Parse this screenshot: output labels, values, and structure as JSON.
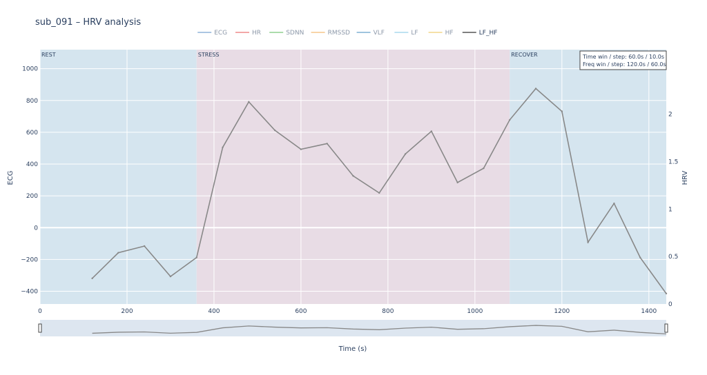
{
  "chart_data": {
    "type": "line",
    "title": "sub_091 – HRV analysis",
    "xlabel": "Time (s)",
    "ylabel_left": "ECG",
    "ylabel_right": "HRV",
    "xlim": [
      0,
      1440
    ],
    "ylim_left": [
      -480,
      1120
    ],
    "ylim_right": [
      0,
      2.68
    ],
    "x_ticks": [
      0,
      200,
      400,
      600,
      800,
      1000,
      1200,
      1400
    ],
    "y_ticks_left": [
      -400,
      -200,
      0,
      200,
      400,
      600,
      800,
      1000
    ],
    "y_ticks_right": [
      0,
      0.5,
      1,
      1.5,
      2
    ],
    "y_tick_labels_left": [
      "−400",
      "−200",
      "0",
      "200",
      "400",
      "600",
      "800",
      "1000"
    ],
    "legend": [
      {
        "name": "ECG",
        "color": "#8fb4d9"
      },
      {
        "name": "HR",
        "color": "#ef8a8a"
      },
      {
        "name": "SDNN",
        "color": "#8fd18f"
      },
      {
        "name": "RMSSD",
        "color": "#f5c58a"
      },
      {
        "name": "VLF",
        "color": "#7fb0d4"
      },
      {
        "name": "LF",
        "color": "#a8d8ee"
      },
      {
        "name": "HF",
        "color": "#f2d68a"
      },
      {
        "name": "LF_HF",
        "color": "#555555",
        "active": true
      }
    ],
    "phases": [
      {
        "label": "REST",
        "start": 0,
        "end": 360,
        "color": "#d5e5ef"
      },
      {
        "label": "STRESS",
        "start": 360,
        "end": 1080,
        "color": "#e8dce5"
      },
      {
        "label": "RECOVER",
        "start": 1080,
        "end": 1440,
        "color": "#d5e5ef"
      }
    ],
    "series": [
      {
        "name": "LF_HF",
        "color": "#888888",
        "axis": "right",
        "x": [
          120,
          180,
          240,
          300,
          360,
          420,
          480,
          540,
          600,
          660,
          720,
          780,
          840,
          900,
          960,
          1020,
          1080,
          1140,
          1200,
          1260,
          1320,
          1380,
          1440
        ],
        "y": [
          0.27,
          0.54,
          0.61,
          0.29,
          0.49,
          1.65,
          2.13,
          1.83,
          1.63,
          1.69,
          1.35,
          1.17,
          1.58,
          1.82,
          1.28,
          1.43,
          1.94,
          2.27,
          2.03,
          0.65,
          1.06,
          0.49,
          0.11
        ]
      }
    ],
    "annotation": {
      "line1": "Time win / step: 60.0s / 10.0s",
      "line2": "Freq win / step: 120.0s / 60.0s"
    },
    "grid": true,
    "legend_position": "top-center",
    "rangeslider": true
  }
}
